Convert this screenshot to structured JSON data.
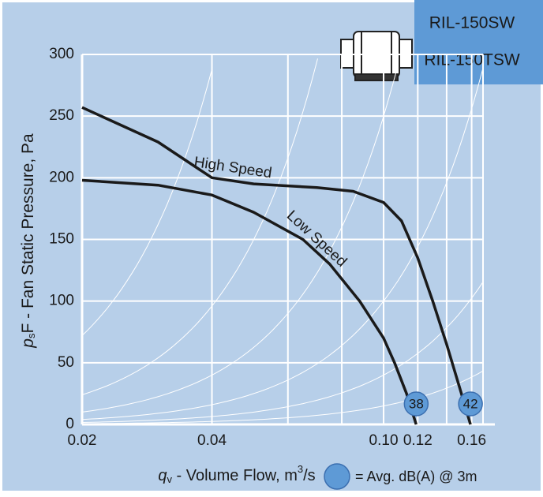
{
  "chart_data": {
    "type": "line",
    "models": [
      "RIL-150SW",
      "RIL-150TSW"
    ],
    "x_label": {
      "symbol": "q",
      "subscript": "v",
      "text": " - Volume Flow, m",
      "superscript": "3",
      "suffix": "/s"
    },
    "y_label": {
      "symbol": "p",
      "subscript": "s",
      "text": "F - Fan Static Pressure, Pa"
    },
    "legend_text": "= Avg. dB(A) @ 3m",
    "log_x": true,
    "xlim": [
      0.02,
      0.17
    ],
    "xticks": [
      0.02,
      0.04,
      {
        "value": 0.1,
        "label": "0.10"
      },
      0.12,
      0.16
    ],
    "x_minor_grid": [
      0.06,
      0.08,
      0.14
    ],
    "ylim": [
      0,
      300
    ],
    "yticks": [
      0,
      50,
      100,
      150,
      200,
      250,
      300
    ],
    "grid": true,
    "series": [
      {
        "name": "High Speed",
        "color": "#1a1a1a",
        "db": 42,
        "x": [
          0.02,
          0.03,
          0.04,
          0.05,
          0.07,
          0.085,
          0.1,
          0.11,
          0.12,
          0.13,
          0.14,
          0.15,
          0.159
        ],
        "values": [
          257,
          229,
          200,
          195,
          192,
          189,
          180,
          165,
          135,
          100,
          65,
          30,
          0
        ]
      },
      {
        "name": "Low Speed",
        "color": "#1a1a1a",
        "db": 38,
        "x": [
          0.02,
          0.03,
          0.04,
          0.05,
          0.065,
          0.075,
          0.088,
          0.1,
          0.106,
          0.113,
          0.119
        ],
        "values": [
          198,
          194,
          186,
          172,
          150,
          130,
          100,
          70,
          50,
          25,
          0
        ]
      }
    ]
  }
}
